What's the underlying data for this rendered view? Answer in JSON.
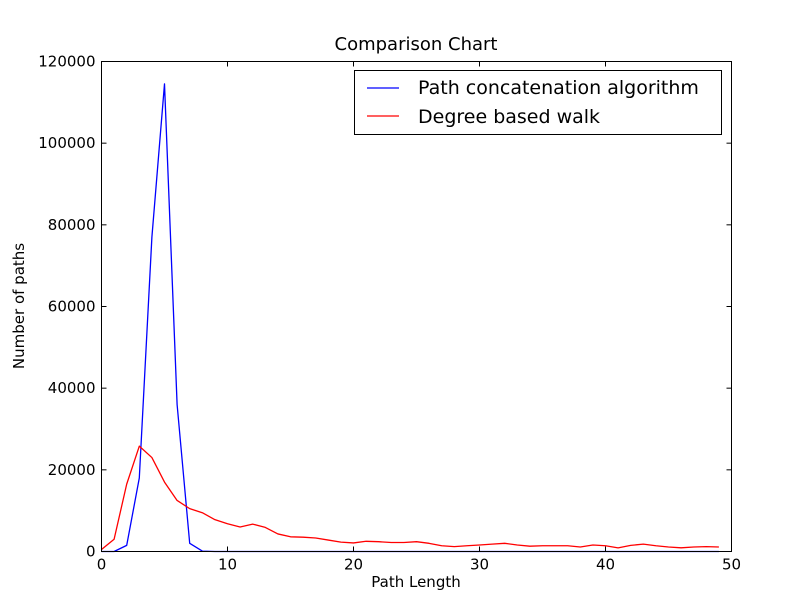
{
  "chart_data": {
    "type": "line",
    "title": "Comparison Chart",
    "xlabel": "Path Length",
    "ylabel": "Number of paths",
    "xlim": [
      0,
      50
    ],
    "ylim": [
      0,
      120000
    ],
    "xticks": [
      0,
      10,
      20,
      30,
      40,
      50
    ],
    "yticks": [
      0,
      20000,
      40000,
      60000,
      80000,
      100000,
      120000
    ],
    "grid": false,
    "legend_position": "top-right",
    "series": [
      {
        "name": "Path concatenation algorithm",
        "color": "#0000ff",
        "x": [
          0,
          1,
          2,
          3,
          4,
          5,
          6,
          7,
          8,
          9,
          10,
          11,
          12,
          13,
          14,
          15,
          16,
          17,
          18,
          19,
          20,
          21,
          22,
          23,
          24,
          25,
          26,
          27,
          28,
          29,
          30,
          31,
          32,
          33,
          34,
          35,
          36,
          37,
          38,
          39,
          40,
          41,
          42,
          43,
          44,
          45,
          46,
          47,
          48,
          49
        ],
        "y": [
          0,
          0,
          1500,
          18000,
          77000,
          114500,
          36000,
          2000,
          100,
          0,
          0,
          0,
          0,
          0,
          0,
          0,
          0,
          0,
          0,
          0,
          0,
          0,
          0,
          0,
          0,
          0,
          0,
          0,
          0,
          0,
          0,
          0,
          0,
          0,
          0,
          0,
          0,
          0,
          0,
          0,
          0,
          0,
          0,
          0,
          0,
          0,
          0,
          0,
          0,
          0
        ]
      },
      {
        "name": "Degree based walk",
        "color": "#ff0000",
        "x": [
          0,
          1,
          2,
          3,
          4,
          5,
          6,
          7,
          8,
          9,
          10,
          11,
          12,
          13,
          14,
          15,
          16,
          17,
          18,
          19,
          20,
          21,
          22,
          23,
          24,
          25,
          26,
          27,
          28,
          29,
          30,
          31,
          32,
          33,
          34,
          35,
          36,
          37,
          38,
          39,
          40,
          41,
          42,
          43,
          44,
          45,
          46,
          47,
          48,
          49
        ],
        "y": [
          500,
          3000,
          16500,
          25800,
          23000,
          17000,
          12500,
          10500,
          9500,
          7800,
          6800,
          6000,
          6700,
          5900,
          4300,
          3600,
          3500,
          3300,
          2800,
          2300,
          2100,
          2500,
          2400,
          2200,
          2200,
          2400,
          2000,
          1400,
          1200,
          1400,
          1600,
          1800,
          2000,
          1600,
          1300,
          1400,
          1400,
          1400,
          1100,
          1600,
          1400,
          900,
          1500,
          1800,
          1400,
          1100,
          900,
          1100,
          1200,
          1100
        ]
      }
    ]
  }
}
